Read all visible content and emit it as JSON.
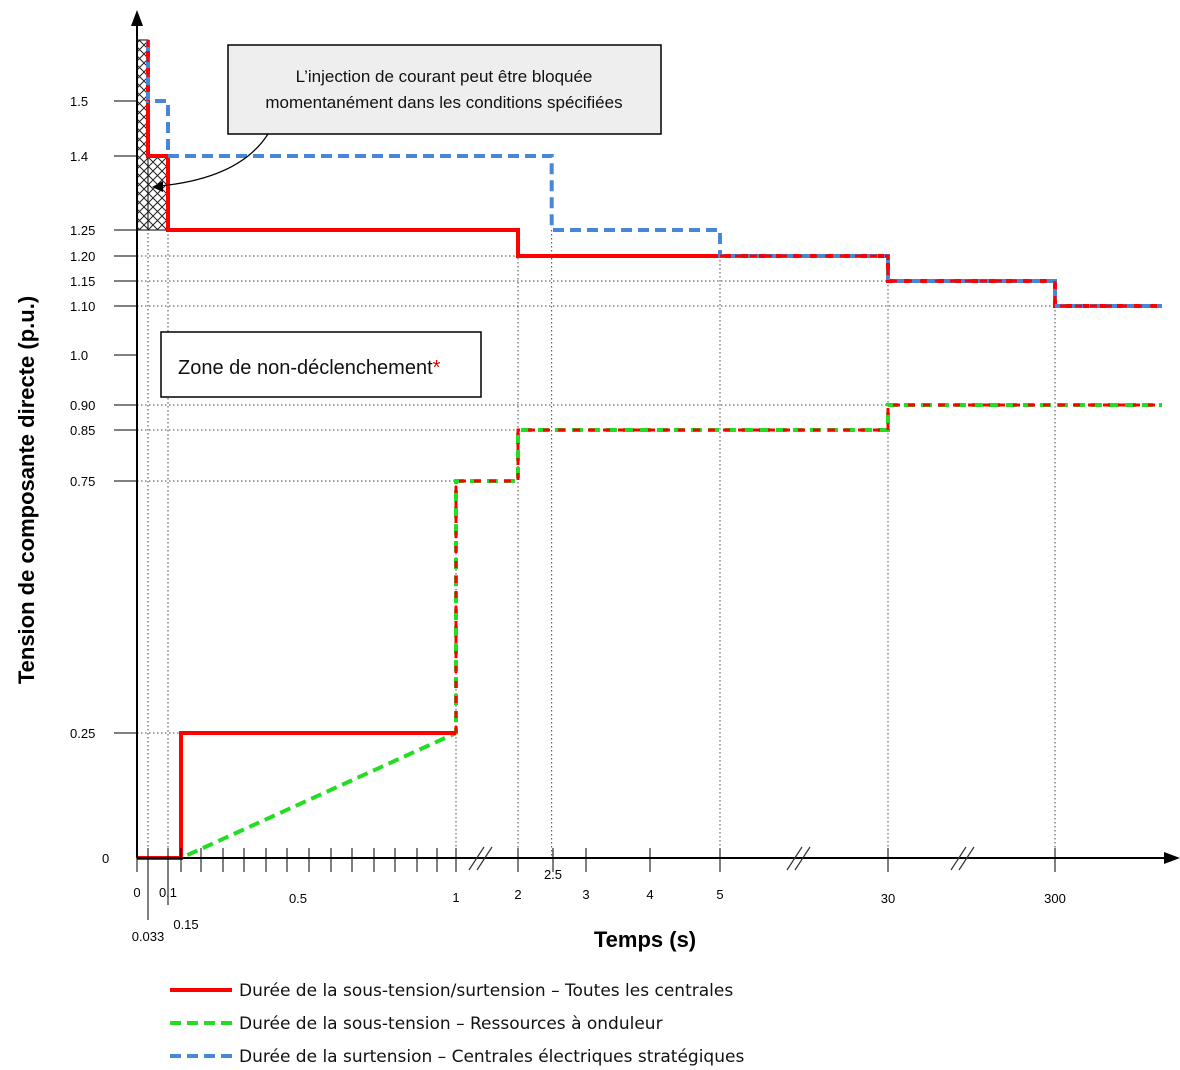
{
  "chart_data": {
    "type": "line",
    "title": "",
    "xlabel": "Temps (s)",
    "ylabel": "Tension de composante directe (p.u.)",
    "x_ticks": [
      {
        "label": "0",
        "t": 0
      },
      {
        "label": "0.033",
        "t": 0.033
      },
      {
        "label": "0.1",
        "t": 0.1
      },
      {
        "label": "0.15",
        "t": 0.15
      },
      {
        "label": "0.5",
        "t": 0.5
      },
      {
        "label": "1",
        "t": 1
      },
      {
        "label": "2",
        "t": 2
      },
      {
        "label": "2.5",
        "t": 2.5
      },
      {
        "label": "3",
        "t": 3
      },
      {
        "label": "4",
        "t": 4
      },
      {
        "label": "5",
        "t": 5
      },
      {
        "label": "30",
        "t": 30
      },
      {
        "label": "300",
        "t": 300
      }
    ],
    "y_ticks": [
      "0",
      "0.25",
      "0.75",
      "0.85",
      "0.90",
      "1.0",
      "1.10",
      "1.15",
      "1.20",
      "1.25",
      "1.4",
      "1.5"
    ],
    "series": [
      {
        "name": "Durée de la sous-tension/surtension – Toutes les centrales",
        "color": "#ff0000",
        "style": "solid",
        "segments": [
          [
            [
              0.033,
              1.6
            ],
            [
              0.033,
              1.4
            ],
            [
              0.1,
              1.4
            ],
            [
              0.1,
              1.25
            ],
            [
              2,
              1.25
            ],
            [
              2,
              1.2
            ],
            [
              30,
              1.2
            ],
            [
              30,
              1.15
            ],
            [
              300,
              1.15
            ],
            [
              300,
              1.1
            ],
            [
              1000,
              1.1
            ]
          ],
          [
            [
              0,
              0
            ],
            [
              0.15,
              0
            ],
            [
              0.15,
              0.25
            ],
            [
              1,
              0.25
            ],
            [
              1,
              0.75
            ],
            [
              2,
              0.75
            ],
            [
              2,
              0.85
            ],
            [
              30,
              0.85
            ],
            [
              30,
              0.9
            ],
            [
              1000,
              0.9
            ]
          ]
        ]
      },
      {
        "name": "Durée de la sous-tension – Ressources à onduleur",
        "color": "#22dd22",
        "style": "dashed",
        "segments": [
          [
            [
              0,
              0
            ],
            [
              0.15,
              0
            ],
            [
              1,
              0.25
            ],
            [
              1,
              0.75
            ],
            [
              2,
              0.75
            ],
            [
              2,
              0.85
            ],
            [
              30,
              0.85
            ],
            [
              30,
              0.9
            ],
            [
              1000,
              0.9
            ]
          ]
        ]
      },
      {
        "name": "Durée de la surtension – Centrales électriques stratégiques",
        "color": "#4a86d8",
        "style": "dashed",
        "segments": [
          [
            [
              0.033,
              1.6
            ],
            [
              0.033,
              1.5
            ],
            [
              0.1,
              1.5
            ],
            [
              0.1,
              1.4
            ],
            [
              2.5,
              1.4
            ],
            [
              2.5,
              1.25
            ],
            [
              5,
              1.25
            ],
            [
              5,
              1.2
            ],
            [
              30,
              1.2
            ],
            [
              30,
              1.15
            ],
            [
              300,
              1.15
            ],
            [
              300,
              1.1
            ],
            [
              1000,
              1.1
            ]
          ]
        ]
      }
    ],
    "annotations": {
      "callout_line1": "L’injection de courant peut être bloquée",
      "callout_line2": "momentanément dans les conditions spécifiées",
      "zone_label": "Zone de non-déclenchement",
      "zone_marker": "*"
    },
    "legend_position": "bottom-left",
    "grid": "dotted reference lines"
  }
}
